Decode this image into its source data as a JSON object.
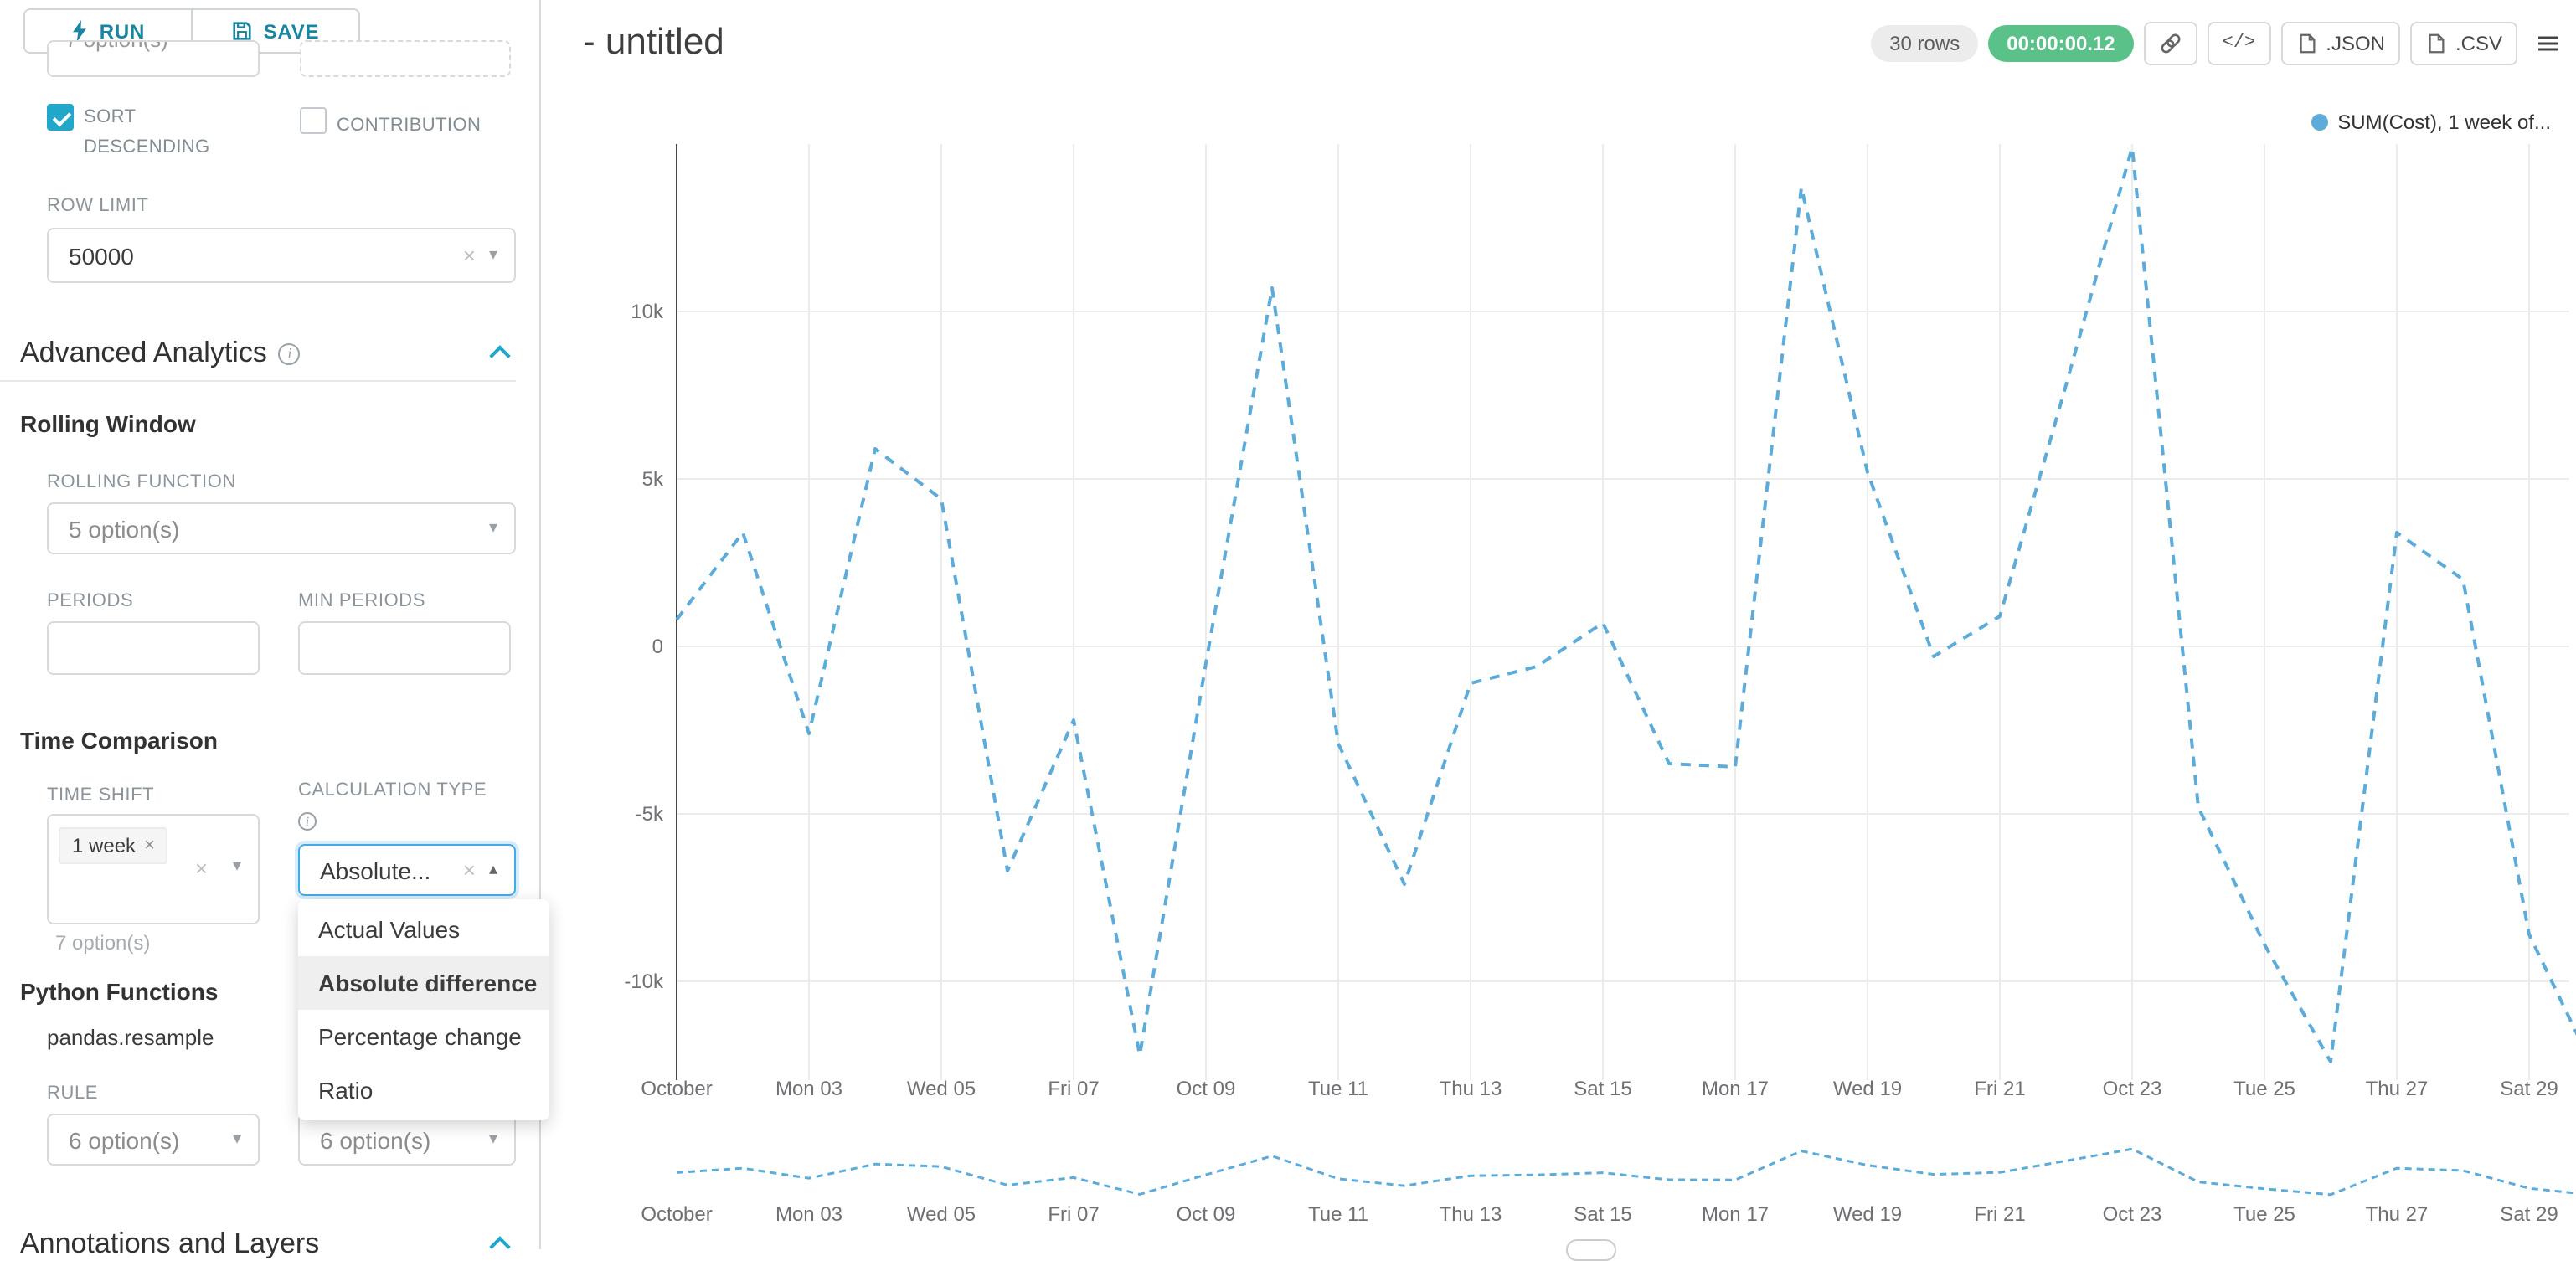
{
  "colors": {
    "accent": "#20a7c9",
    "run_save_text": "#1a85a0",
    "success_badge": "#5ac189",
    "line": "#5dabd9",
    "focus_border": "#45a8e8"
  },
  "icons": {
    "run": "lightning",
    "save": "save-disk",
    "link": "link",
    "code": "</>",
    "file": "file",
    "menu": "hamburger",
    "info": "i",
    "clear": "×",
    "tag_close": "×",
    "caret_down": "▾",
    "caret_up": "▴"
  },
  "panel": {
    "run_label": "RUN",
    "save_label": "SAVE",
    "top_partial_select": "7 option(s)",
    "sort_descending_label": "SORT DESCENDING",
    "contribution_label": "CONTRIBUTION",
    "row_limit_label": "ROW LIMIT",
    "row_limit_value": "50000",
    "advanced_analytics_title": "Advanced Analytics",
    "rolling_window_title": "Rolling Window",
    "rolling_function_label": "ROLLING FUNCTION",
    "rolling_function_placeholder": "5 option(s)",
    "periods_label": "PERIODS",
    "min_periods_label": "MIN PERIODS",
    "time_comparison_title": "Time Comparison",
    "time_shift_label": "TIME SHIFT",
    "time_shift_tag": "1 week",
    "time_shift_helper": "7 option(s)",
    "calculation_type_label": "CALCULATION TYPE",
    "calculation_type_value": "Absolute...",
    "calculation_type_options": [
      "Actual Values",
      "Absolute difference",
      "Percentage change",
      "Ratio"
    ],
    "calculation_type_selected": "Absolute difference",
    "python_functions_title": "Python Functions",
    "python_function_name": "pandas.resample",
    "rule_label": "RULE",
    "rule_placeholder": "6 option(s)",
    "method_placeholder": "6 option(s)",
    "annotations_title": "Annotations and Layers"
  },
  "header": {
    "title": "- untitled",
    "rows_badge": "30 rows",
    "timer_badge": "00:00:00.12",
    "json_label": ".JSON",
    "csv_label": ".CSV"
  },
  "chart_data": {
    "type": "line",
    "title": "",
    "xlabel": "",
    "ylabel": "",
    "line_style": "dashed",
    "line_color": "#5dabd9",
    "grid": true,
    "legend_position": "top-right",
    "legend": [
      {
        "name": "SUM(Cost), 1 week of...",
        "color": "#5dabd9"
      }
    ],
    "x": [
      "Oct 01",
      "Oct 02",
      "Oct 03",
      "Oct 04",
      "Oct 05",
      "Oct 06",
      "Oct 07",
      "Oct 08",
      "Oct 09",
      "Oct 10",
      "Oct 11",
      "Oct 12",
      "Oct 13",
      "Oct 14",
      "Oct 15",
      "Oct 16",
      "Oct 17",
      "Oct 18",
      "Oct 19",
      "Oct 20",
      "Oct 21",
      "Oct 22",
      "Oct 23",
      "Oct 24",
      "Oct 25",
      "Oct 26",
      "Oct 27",
      "Oct 28",
      "Oct 29",
      "Oct 30"
    ],
    "values": [
      800,
      3400,
      -2600,
      5900,
      4400,
      -6700,
      -2200,
      -12200,
      -500,
      10700,
      -2900,
      -7100,
      -1100,
      -600,
      700,
      -3500,
      -3600,
      13700,
      5200,
      -300,
      900,
      7800,
      14900,
      -4800,
      -8900,
      -12400,
      3400,
      2000,
      -8600,
      -12700
    ],
    "x_tick_labels": [
      "October",
      "Mon 03",
      "Wed 05",
      "Fri 07",
      "Oct 09",
      "Tue 11",
      "Thu 13",
      "Sat 15",
      "Mon 17",
      "Wed 19",
      "Fri 21",
      "Oct 23",
      "Tue 25",
      "Thu 27",
      "Sat 29"
    ],
    "y_tick_labels": [
      "10k",
      "5k",
      "0",
      "-5k",
      "-10k"
    ],
    "y_tick_values": [
      10000,
      5000,
      0,
      -5000,
      -10000
    ],
    "ylim": [
      -13000,
      15000
    ],
    "has_mini_chart": true
  }
}
